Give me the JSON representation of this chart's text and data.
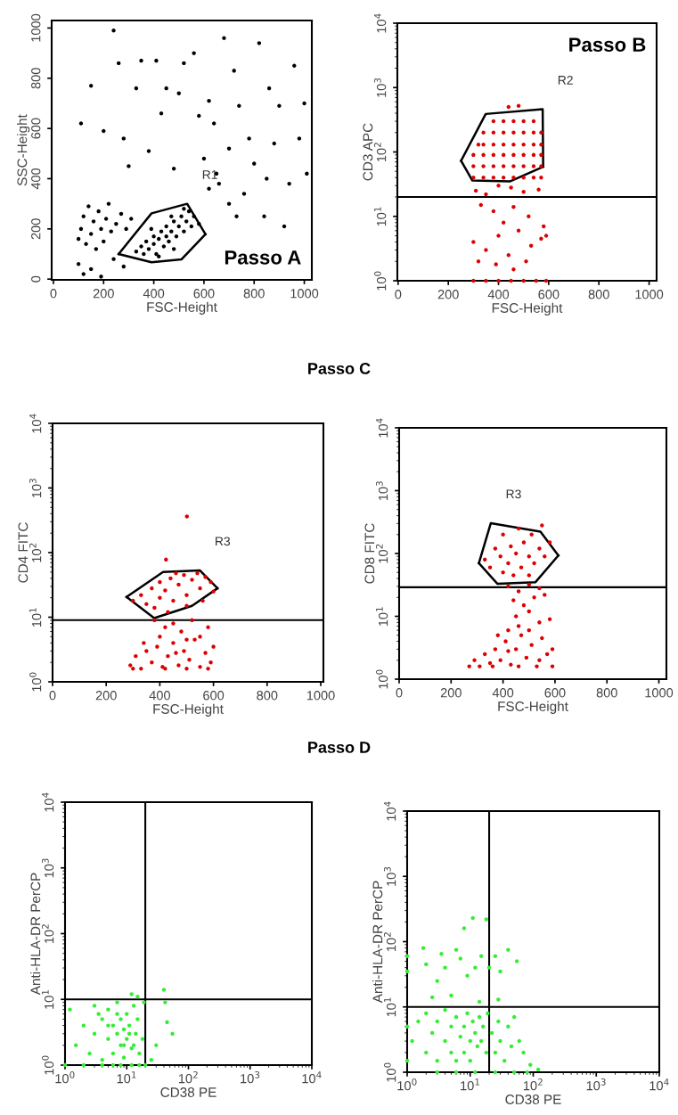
{
  "chart_data": [
    {
      "type": "scatter",
      "xlabel": "FSC-Height",
      "ylabel": "SSC-Height",
      "xlim": [
        -7,
        1030
      ],
      "ylim": [
        -3,
        1030
      ],
      "xticks": [
        0,
        200,
        400,
        600,
        800,
        1000
      ],
      "yticks": [
        0,
        200,
        400,
        600,
        800,
        1000
      ],
      "marker": "circle",
      "annotations": [
        "Passo A"
      ],
      "series": [
        {
          "color": "#000000",
          "x": [
            330,
            350,
            370,
            380,
            400,
            400,
            410,
            420,
            430,
            440,
            450,
            450,
            460,
            470,
            480,
            490,
            500,
            510,
            520,
            530,
            540,
            550,
            560,
            420,
            480,
            360,
            390,
            470,
            520,
            580,
            100,
            110,
            120,
            130,
            140,
            150,
            160,
            170,
            180,
            190,
            200,
            210,
            220,
            230,
            250,
            270,
            290,
            310,
            100,
            120,
            150,
            190,
            240,
            280,
            110,
            150,
            200,
            240,
            260,
            280,
            300,
            330,
            350,
            380,
            410,
            430,
            450,
            480,
            500,
            520,
            560,
            580,
            600,
            620,
            640,
            660,
            680,
            700,
            720,
            740,
            760,
            780,
            800,
            820,
            840,
            860,
            880,
            900,
            920,
            940,
            960,
            980,
            1000,
            1010,
            700,
            650,
            620,
            730,
            850
          ],
          "values": [
            110,
            130,
            150,
            120,
            140,
            170,
            100,
            160,
            190,
            130,
            170,
            210,
            150,
            190,
            230,
            170,
            210,
            250,
            190,
            230,
            270,
            210,
            250,
            90,
            120,
            100,
            200,
            250,
            280,
            220,
            160,
            200,
            250,
            140,
            290,
            180,
            230,
            120,
            270,
            200,
            150,
            240,
            300,
            190,
            220,
            260,
            200,
            240,
            60,
            20,
            40,
            10,
            80,
            50,
            620,
            770,
            590,
            990,
            860,
            560,
            450,
            760,
            870,
            510,
            870,
            660,
            760,
            440,
            740,
            860,
            900,
            650,
            480,
            710,
            620,
            380,
            960,
            520,
            830,
            690,
            340,
            560,
            460,
            940,
            250,
            760,
            540,
            690,
            210,
            380,
            850,
            560,
            700,
            420,
            300,
            420,
            360,
            250,
            400
          ]
        },
        {
          "type": "line",
          "name": "R1",
          "marker": "none",
          "color": "#000000",
          "x": [
            260,
            391,
            533,
            606
          ],
          "values": [
            100,
            262,
            300,
            179
          ]
        },
        {
          "type": "line",
          "marker": "none",
          "color": "#000000",
          "x": [
            260,
            391,
            511,
            606
          ],
          "values": [
            100,
            67,
            79,
            179
          ]
        }
      ]
    },
    {
      "type": "scatter",
      "xlabel": "FSC-Height",
      "ylabel": "CD3 APC",
      "log": "y",
      "xlim": [
        -3,
        1030
      ],
      "ylim": [
        1,
        10000
      ],
      "xticks": [
        0,
        200,
        400,
        600,
        800,
        1000
      ],
      "yticks": [
        {
          "value": 1,
          "label": "10$^{0}$"
        },
        {
          "value": 10,
          "label": "10$^{1}$"
        },
        {
          "value": 100,
          "label": "10$^{2}$"
        },
        {
          "value": 1000,
          "label": "10$^{3}$"
        },
        {
          "value": 10000,
          "label": "10$^{4}$"
        }
      ],
      "marker": "circle",
      "ref_lines": [
        {
          "axis": "y",
          "value": 20,
          "color": "#000000"
        }
      ],
      "annotations": [
        "Passo B"
      ],
      "series": [
        {
          "color": "#dd0000",
          "x": [
            300,
            340,
            380,
            420,
            460,
            500,
            540,
            570,
            300,
            340,
            380,
            420,
            460,
            500,
            540,
            570,
            300,
            340,
            380,
            420,
            460,
            500,
            540,
            570,
            320,
            340,
            380,
            420,
            460,
            500,
            540,
            570,
            340,
            380,
            420,
            460,
            500,
            540,
            570,
            380,
            420,
            460,
            500,
            540,
            310,
            350,
            400,
            450,
            500,
            560,
            330,
            380,
            420,
            460,
            520,
            580,
            300,
            350,
            400,
            440,
            480,
            530,
            570,
            320,
            390,
            460,
            510,
            590,
            300,
            350,
            400,
            450,
            500,
            550,
            590,
            440,
            480
          ],
          "values": [
            40,
            40,
            40,
            40,
            40,
            40,
            40,
            40,
            60,
            60,
            60,
            60,
            60,
            60,
            60,
            60,
            90,
            90,
            90,
            90,
            90,
            90,
            90,
            90,
            130,
            130,
            130,
            130,
            130,
            130,
            130,
            130,
            200,
            200,
            200,
            200,
            200,
            200,
            200,
            300,
            300,
            300,
            300,
            300,
            25,
            22,
            30,
            28,
            24,
            26,
            15,
            12,
            8,
            14,
            10,
            7,
            4,
            3,
            5,
            2.5,
            6,
            3.5,
            4.5,
            2,
            1.8,
            1.5,
            2,
            5,
            1,
            1,
            1,
            1,
            1,
            1,
            1,
            500,
            520
          ]
        },
        {
          "type": "line",
          "name": "R2",
          "marker": "none",
          "color": "#000000",
          "x": [
            251,
            349,
            576,
            578
          ],
          "values": [
            73,
            389,
            461,
            59
          ]
        },
        {
          "type": "line",
          "marker": "none",
          "color": "#000000",
          "x": [
            251,
            296,
            447,
            578
          ],
          "values": [
            73,
            36,
            35,
            59
          ]
        }
      ]
    },
    {
      "type": "scatter",
      "title": "Passo C",
      "xlabel": "FSC-Height",
      "ylabel": "CD4 FITC",
      "log": "y",
      "xlim": [
        0,
        1010
      ],
      "ylim": [
        1,
        10000
      ],
      "xticks": [
        0,
        200,
        400,
        600,
        800,
        1000
      ],
      "yticks": [
        {
          "value": 1,
          "label": "10$^{0}$"
        },
        {
          "value": 10,
          "label": "10$^{1}$"
        },
        {
          "value": 100,
          "label": "10$^{2}$"
        },
        {
          "value": 1000,
          "label": "10$^{3}$"
        },
        {
          "value": 10000,
          "label": "10$^{4}$"
        }
      ],
      "marker": "circle",
      "ref_lines": [
        {
          "axis": "y",
          "value": 9,
          "color": "#000000"
        }
      ],
      "series": [
        {
          "color": "#dd0000",
          "x": [
            300,
            330,
            350,
            370,
            400,
            400,
            420,
            440,
            450,
            470,
            490,
            500,
            520,
            540,
            550,
            570,
            590,
            600,
            460,
            380,
            430,
            500,
            560,
            380,
            420,
            450,
            480,
            520,
            550,
            580,
            400,
            500,
            290,
            310,
            330,
            350,
            370,
            390,
            410,
            430,
            450,
            470,
            490,
            510,
            530,
            550,
            570,
            590,
            600,
            300,
            420,
            500,
            580,
            340,
            460,
            501,
            423
          ],
          "values": [
            18,
            22,
            16,
            28,
            20,
            35,
            26,
            40,
            18,
            32,
            45,
            22,
            38,
            48,
            28,
            42,
            35,
            25,
            48,
            14,
            12,
            15,
            18,
            9,
            7,
            8,
            6,
            9,
            5,
            7,
            5,
            4.5,
            1.8,
            2.5,
            1.6,
            3,
            2,
            3.5,
            1.7,
            2.5,
            4,
            1.8,
            3,
            2.2,
            4.5,
            1.7,
            2.8,
            2,
            3.5,
            1.6,
            1.6,
            1.6,
            1.6,
            4,
            2.8,
            363,
            78
          ]
        },
        {
          "type": "line",
          "name": "R3",
          "marker": "none",
          "color": "#000000",
          "x": [
            276,
            412,
            549,
            615
          ],
          "values": [
            20.6,
            50,
            53,
            28
          ]
        },
        {
          "type": "line",
          "marker": "none",
          "color": "#000000",
          "x": [
            276,
            379,
            520,
            615
          ],
          "values": [
            20.6,
            9.7,
            15,
            28
          ]
        }
      ]
    },
    {
      "type": "scatter",
      "xlabel": "FSC-Height",
      "ylabel": "CD8 FITC",
      "log": "y",
      "xlim": [
        0,
        1029
      ],
      "ylim": [
        1,
        10000
      ],
      "xticks": [
        0,
        200,
        400,
        600,
        800,
        1000
      ],
      "yticks": [
        {
          "value": 1,
          "label": "10$^{0}$"
        },
        {
          "value": 10,
          "label": "10$^{1}$"
        },
        {
          "value": 100,
          "label": "10$^{2}$"
        },
        {
          "value": 1000,
          "label": "10$^{3}$"
        },
        {
          "value": 10000,
          "label": "10$^{4}$"
        }
      ],
      "marker": "circle",
      "ref_lines": [
        {
          "axis": "y",
          "value": 29,
          "color": "#000000"
        }
      ],
      "series": [
        {
          "color": "#dd0000",
          "x": [
            330,
            350,
            370,
            390,
            400,
            420,
            430,
            450,
            460,
            470,
            480,
            500,
            510,
            520,
            540,
            550,
            560,
            580,
            440,
            500,
            400,
            420,
            460,
            500,
            540,
            440,
            480,
            520,
            560,
            450,
            500,
            540,
            580,
            420,
            380,
            460,
            270,
            290,
            310,
            330,
            350,
            370,
            390,
            410,
            430,
            450,
            470,
            490,
            510,
            530,
            550,
            570,
            590,
            590,
            360,
            460,
            420,
            500,
            540
          ],
          "values": [
            80,
            60,
            120,
            90,
            200,
            70,
            130,
            100,
            250,
            60,
            150,
            90,
            200,
            70,
            120,
            280,
            90,
            150,
            45,
            45,
            50,
            30,
            25,
            32,
            28,
            18,
            15,
            20,
            22,
            10,
            12,
            8,
            9,
            6,
            5,
            7,
            1.6,
            2,
            1.6,
            2.5,
            1.8,
            3,
            2,
            4,
            1.7,
            3,
            5,
            2.2,
            3.5,
            1.6,
            4.5,
            2.5,
            3,
            1.6,
            1.6,
            1.6,
            2.8,
            6,
            2
          ]
        },
        {
          "type": "line",
          "name": "R3",
          "marker": "none",
          "color": "#000000",
          "x": [
            307,
            353,
            544,
            613
          ],
          "values": [
            70,
            304,
            222,
            93
          ]
        },
        {
          "type": "line",
          "marker": "none",
          "color": "#000000",
          "x": [
            307,
            378,
            525,
            613
          ],
          "values": [
            70,
            33,
            35,
            93
          ]
        }
      ]
    },
    {
      "type": "scatter",
      "title": "Passo D",
      "xlabel": "CD38 PE",
      "ylabel": "Anti-HLA-DR PerCP",
      "log": "xy",
      "xlim": [
        1,
        10000
      ],
      "ylim": [
        1,
        10000
      ],
      "xticks": [
        {
          "value": 1,
          "label": "10$^{0}$"
        },
        {
          "value": 10,
          "label": "10$^{1}$"
        },
        {
          "value": 100,
          "label": "10$^{2}$"
        },
        {
          "value": 1000,
          "label": "10$^{3}$"
        },
        {
          "value": 10000,
          "label": "10$^{4}$"
        }
      ],
      "yticks": [
        {
          "value": 1,
          "label": "10$^{0}$"
        },
        {
          "value": 10,
          "label": "10$^{1}$"
        },
        {
          "value": 100,
          "label": "10$^{2}$"
        },
        {
          "value": 1000,
          "label": "10$^{3}$"
        },
        {
          "value": 10000,
          "label": "10$^{4}$"
        }
      ],
      "marker": "circle",
      "ref_lines": [
        {
          "axis": "x",
          "value": 20,
          "color": "#000000"
        },
        {
          "axis": "y",
          "value": 10,
          "color": "#000000"
        }
      ],
      "series": [
        {
          "color": "#33ee33",
          "x": [
            1.2,
            1.5,
            2,
            2.5,
            3,
            3,
            4,
            4,
            5,
            5,
            6,
            6,
            7,
            7,
            8,
            8,
            9,
            9,
            10,
            10,
            11,
            12,
            13,
            14,
            15,
            16,
            18,
            19,
            1,
            2,
            4,
            6,
            8,
            12,
            16,
            20,
            5,
            7,
            9,
            11,
            3.5,
            13,
            25,
            30,
            45,
            55,
            40,
            42,
            12,
            15
          ],
          "values": [
            7,
            2,
            4,
            1.5,
            8,
            3,
            5,
            1.2,
            2.5,
            7,
            4,
            1.5,
            3,
            9,
            2,
            5,
            3.5,
            1.3,
            6,
            2.5,
            4,
            1.8,
            8,
            3,
            5,
            1.5,
            2.5,
            9,
            1,
            1,
            1,
            1,
            1,
            1,
            1,
            1,
            4,
            6,
            2,
            3,
            6,
            2,
            1.2,
            2,
            4.5,
            3,
            14,
            9,
            12,
            11
          ]
        }
      ]
    },
    {
      "type": "scatter",
      "xlabel": "CD38 PE",
      "ylabel": "Anti-HLA-DR PerCP",
      "log": "xy",
      "xlim": [
        1,
        10000
      ],
      "ylim": [
        1,
        10000
      ],
      "xticks": [
        {
          "value": 1,
          "label": "10$^{0}$"
        },
        {
          "value": 10,
          "label": "10$^{1}$"
        },
        {
          "value": 100,
          "label": "10$^{2}$"
        },
        {
          "value": 1000,
          "label": "10$^{3}$"
        },
        {
          "value": 10000,
          "label": "10$^{4}$"
        }
      ],
      "yticks": [
        {
          "value": 1,
          "label": "10$^{0}$"
        },
        {
          "value": 10,
          "label": "10$^{1}$"
        },
        {
          "value": 100,
          "label": "10$^{2}$"
        },
        {
          "value": 1000,
          "label": "10$^{3}$"
        },
        {
          "value": 10000,
          "label": "10$^{4}$"
        }
      ],
      "marker": "circle",
      "ref_lines": [
        {
          "axis": "x",
          "value": 20,
          "color": "#000000"
        },
        {
          "axis": "y",
          "value": 10,
          "color": "#000000"
        }
      ],
      "series": [
        {
          "color": "#33ee33",
          "x": [
            1.2,
            1.5,
            2,
            2,
            2.5,
            3,
            3,
            4,
            4,
            5,
            5,
            6,
            6,
            7,
            8,
            8,
            9,
            10,
            10,
            11,
            12,
            13,
            14,
            15,
            16,
            18,
            19,
            22,
            25,
            28,
            30,
            35,
            40,
            45,
            50,
            60,
            70,
            90,
            120,
            3,
            6,
            12,
            25,
            50,
            80,
            1,
            1,
            1,
            1,
            1.8,
            2,
            3,
            3.5,
            4,
            5,
            6,
            7,
            8,
            9,
            11,
            12,
            15,
            18,
            20,
            25,
            30,
            40,
            55,
            14,
            2.5,
            28
          ],
          "values": [
            3,
            6,
            2,
            8,
            4,
            1.5,
            6,
            3,
            9,
            2,
            5,
            7,
            1.5,
            3.5,
            5,
            2,
            8,
            3,
            1.5,
            6,
            4,
            2.5,
            7,
            3,
            5,
            2,
            8,
            4,
            2,
            6,
            3,
            1.5,
            5,
            2.5,
            7,
            3,
            2,
            1.3,
            1.1,
            1,
            1,
            1,
            1,
            1,
            1,
            1.5,
            5,
            35,
            60,
            80,
            45,
            25,
            65,
            40,
            15,
            75,
            55,
            160,
            30,
            230,
            40,
            60,
            220,
            40,
            60,
            35,
            75,
            50,
            12,
            14,
            13
          ]
        }
      ]
    }
  ]
}
